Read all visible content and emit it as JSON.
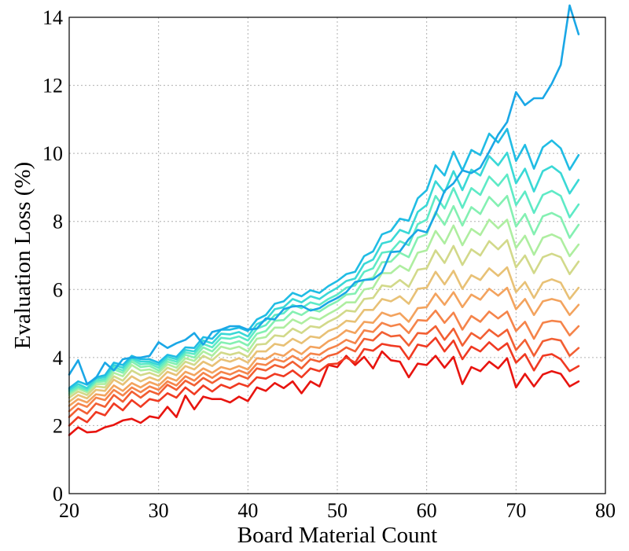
{
  "chart_data": {
    "type": "line",
    "title": "",
    "xlabel": "Board Material Count",
    "ylabel": "Evaluation Loss (%)",
    "xlim": [
      20,
      80
    ],
    "ylim": [
      0,
      14
    ],
    "xticks": [
      20,
      30,
      40,
      50,
      60,
      70,
      80
    ],
    "yticks": [
      0,
      2,
      4,
      6,
      8,
      10,
      12,
      14
    ],
    "grid": true,
    "legend": "none",
    "x": [
      20,
      21,
      22,
      23,
      24,
      25,
      26,
      27,
      28,
      29,
      30,
      31,
      32,
      33,
      34,
      35,
      36,
      37,
      38,
      39,
      40,
      41,
      42,
      43,
      44,
      45,
      46,
      47,
      48,
      49,
      50,
      51,
      52,
      53,
      54,
      55,
      56,
      57,
      58,
      59,
      60,
      61,
      62,
      63,
      64,
      65,
      66,
      67,
      68,
      69,
      70,
      71,
      72,
      73,
      74,
      75,
      76,
      77
    ],
    "series": [
      {
        "color": "#e8140f",
        "values": [
          1.72,
          1.95,
          1.8,
          1.82,
          1.95,
          2.02,
          2.15,
          2.2,
          2.08,
          2.27,
          2.22,
          2.55,
          2.25,
          2.88,
          2.48,
          2.85,
          2.78,
          2.78,
          2.68,
          2.85,
          2.72,
          3.12,
          3.02,
          3.25,
          3.1,
          3.3,
          2.95,
          3.3,
          3.15,
          3.78,
          3.72,
          4.05,
          3.78,
          4.02,
          3.68,
          4.18,
          3.92,
          3.88,
          3.42,
          3.82,
          3.78,
          4.05,
          3.7,
          4.02,
          3.22,
          3.72,
          3.6,
          3.88,
          3.68,
          3.98,
          3.12,
          3.52,
          3.15,
          3.5,
          3.6,
          3.52,
          3.15,
          3.3
        ]
      },
      {
        "color": "#f03a22",
        "values": [
          2.0,
          2.25,
          2.1,
          2.4,
          2.3,
          2.65,
          2.45,
          2.75,
          2.55,
          2.78,
          2.72,
          2.95,
          2.82,
          3.12,
          2.92,
          3.18,
          3.0,
          3.2,
          3.1,
          3.24,
          3.15,
          3.42,
          3.38,
          3.52,
          3.45,
          3.62,
          3.42,
          3.68,
          3.6,
          3.8,
          3.82,
          4.0,
          3.85,
          4.25,
          4.2,
          4.4,
          4.35,
          4.32,
          3.95,
          4.38,
          4.32,
          4.58,
          4.18,
          4.5,
          3.95,
          4.32,
          4.18,
          4.45,
          4.22,
          4.42,
          3.85,
          4.1,
          3.62,
          4.05,
          4.1,
          3.95,
          3.6,
          3.75
        ]
      },
      {
        "color": "#f25f33",
        "values": [
          2.25,
          2.5,
          2.35,
          2.65,
          2.55,
          2.9,
          2.7,
          3.0,
          2.82,
          3.02,
          2.92,
          3.2,
          3.05,
          3.32,
          3.18,
          3.4,
          3.25,
          3.42,
          3.35,
          3.48,
          3.38,
          3.68,
          3.62,
          3.78,
          3.7,
          3.88,
          3.68,
          3.95,
          3.88,
          4.05,
          4.12,
          4.3,
          4.18,
          4.55,
          4.5,
          4.75,
          4.62,
          4.65,
          4.35,
          4.72,
          4.7,
          4.92,
          4.52,
          4.85,
          4.35,
          4.72,
          4.55,
          4.82,
          4.62,
          4.82,
          4.22,
          4.52,
          4.05,
          4.48,
          4.55,
          4.5,
          4.05,
          4.28
        ]
      },
      {
        "color": "#f5844a",
        "values": [
          2.42,
          2.65,
          2.55,
          2.82,
          2.75,
          3.05,
          2.88,
          3.12,
          2.98,
          3.15,
          3.05,
          3.3,
          3.18,
          3.45,
          3.32,
          3.55,
          3.4,
          3.58,
          3.5,
          3.62,
          3.52,
          3.82,
          3.78,
          3.95,
          3.88,
          4.05,
          3.9,
          4.12,
          4.08,
          4.25,
          4.35,
          4.52,
          4.42,
          4.8,
          4.75,
          5.02,
          4.92,
          4.98,
          4.72,
          5.1,
          5.08,
          5.38,
          5.02,
          5.32,
          4.82,
          5.22,
          5.05,
          5.35,
          5.15,
          5.35,
          4.78,
          5.05,
          4.55,
          5.02,
          5.08,
          5.05,
          4.65,
          4.92
        ]
      },
      {
        "color": "#f3a35e",
        "values": [
          2.58,
          2.78,
          2.68,
          2.92,
          2.88,
          3.18,
          3.02,
          3.25,
          3.12,
          3.28,
          3.18,
          3.42,
          3.32,
          3.58,
          3.48,
          3.68,
          3.55,
          3.72,
          3.65,
          3.75,
          3.65,
          3.98,
          3.95,
          4.12,
          4.05,
          4.25,
          4.1,
          4.32,
          4.28,
          4.48,
          4.6,
          4.8,
          4.72,
          5.05,
          5.02,
          5.32,
          5.22,
          5.3,
          5.05,
          5.45,
          5.48,
          5.88,
          5.55,
          5.92,
          5.48,
          5.85,
          5.7,
          6.02,
          5.82,
          6.05,
          5.42,
          5.72,
          5.25,
          5.65,
          5.72,
          5.65,
          5.25,
          5.55
        ]
      },
      {
        "color": "#e8c176",
        "values": [
          2.7,
          2.9,
          2.8,
          3.05,
          3.02,
          3.35,
          3.2,
          3.45,
          3.3,
          3.42,
          3.32,
          3.58,
          3.48,
          3.75,
          3.65,
          3.88,
          3.75,
          3.95,
          3.88,
          3.98,
          3.85,
          4.18,
          4.18,
          4.4,
          4.35,
          4.55,
          4.42,
          4.62,
          4.58,
          4.78,
          4.88,
          5.08,
          5.05,
          5.4,
          5.4,
          5.72,
          5.65,
          5.8,
          5.58,
          6.02,
          6.05,
          6.52,
          6.15,
          6.55,
          6.02,
          6.42,
          6.28,
          6.62,
          6.4,
          6.65,
          5.92,
          6.22,
          5.75,
          6.2,
          6.3,
          6.2,
          5.72,
          6.05
        ]
      },
      {
        "color": "#d2d98a",
        "values": [
          2.82,
          3.0,
          2.9,
          3.15,
          3.12,
          3.45,
          3.32,
          3.62,
          3.48,
          3.55,
          3.45,
          3.7,
          3.6,
          3.88,
          3.78,
          4.05,
          3.92,
          4.15,
          4.08,
          4.15,
          4.02,
          4.38,
          4.4,
          4.65,
          4.62,
          4.85,
          4.72,
          4.92,
          4.88,
          5.05,
          5.18,
          5.38,
          5.35,
          5.72,
          5.75,
          6.12,
          6.08,
          6.28,
          6.08,
          6.58,
          6.62,
          7.15,
          6.78,
          7.28,
          6.72,
          7.18,
          7.0,
          7.42,
          7.18,
          7.45,
          6.65,
          7.0,
          6.48,
          6.95,
          7.05,
          6.95,
          6.45,
          6.82
        ]
      },
      {
        "color": "#aeeea0",
        "values": [
          2.9,
          3.08,
          2.98,
          3.22,
          3.22,
          3.55,
          3.45,
          3.78,
          3.62,
          3.65,
          3.55,
          3.8,
          3.7,
          3.98,
          3.9,
          4.18,
          4.05,
          4.32,
          4.25,
          4.32,
          4.18,
          4.55,
          4.6,
          4.88,
          4.88,
          5.12,
          5.0,
          5.18,
          5.12,
          5.28,
          5.42,
          5.62,
          5.62,
          6.0,
          6.05,
          6.48,
          6.48,
          6.7,
          6.55,
          7.08,
          7.15,
          7.72,
          7.35,
          7.88,
          7.3,
          7.78,
          7.6,
          8.05,
          7.8,
          8.05,
          7.22,
          7.58,
          7.02,
          7.52,
          7.62,
          7.5,
          6.98,
          7.32
        ]
      },
      {
        "color": "#84f0b2",
        "values": [
          2.95,
          3.12,
          3.02,
          3.28,
          3.3,
          3.65,
          3.55,
          3.88,
          3.72,
          3.75,
          3.62,
          3.88,
          3.8,
          4.08,
          4.0,
          4.3,
          4.18,
          4.45,
          4.4,
          4.48,
          4.35,
          4.7,
          4.78,
          5.08,
          5.1,
          5.35,
          5.25,
          5.42,
          5.35,
          5.52,
          5.65,
          5.85,
          5.88,
          6.28,
          6.35,
          6.8,
          6.82,
          7.08,
          6.95,
          7.52,
          7.62,
          8.28,
          7.9,
          8.45,
          7.88,
          8.42,
          8.22,
          8.72,
          8.45,
          8.75,
          7.85,
          8.22,
          7.62,
          8.15,
          8.25,
          8.12,
          7.52,
          7.9
        ]
      },
      {
        "color": "#5eeac6",
        "values": [
          3.0,
          3.15,
          3.05,
          3.32,
          3.36,
          3.72,
          3.62,
          3.95,
          3.8,
          3.82,
          3.7,
          3.95,
          3.88,
          4.15,
          4.1,
          4.4,
          4.3,
          4.58,
          4.55,
          4.62,
          4.5,
          4.85,
          4.95,
          5.25,
          5.3,
          5.55,
          5.45,
          5.62,
          5.55,
          5.72,
          5.85,
          6.05,
          6.12,
          6.52,
          6.62,
          7.08,
          7.12,
          7.42,
          7.3,
          7.92,
          8.05,
          8.75,
          8.38,
          8.98,
          8.4,
          8.98,
          8.78,
          9.32,
          9.05,
          9.38,
          8.48,
          8.88,
          8.25,
          8.78,
          8.9,
          8.75,
          8.12,
          8.5
        ]
      },
      {
        "color": "#3ad8d6",
        "values": [
          3.05,
          3.22,
          3.1,
          3.38,
          3.42,
          3.78,
          3.7,
          4.0,
          3.88,
          3.88,
          3.78,
          4.02,
          3.95,
          4.22,
          4.18,
          4.5,
          4.42,
          4.7,
          4.68,
          4.75,
          4.62,
          4.98,
          5.1,
          5.42,
          5.48,
          5.72,
          5.62,
          5.8,
          5.72,
          5.9,
          6.05,
          6.25,
          6.32,
          6.75,
          6.88,
          7.35,
          7.42,
          7.75,
          7.65,
          8.28,
          8.48,
          9.18,
          8.85,
          9.48,
          8.92,
          9.52,
          9.35,
          9.92,
          9.65,
          10.02,
          9.12,
          9.55,
          8.88,
          9.48,
          9.62,
          9.42,
          8.82,
          9.22
        ]
      },
      {
        "color": "#20bce4",
        "values": [
          3.1,
          3.3,
          3.2,
          3.42,
          3.48,
          3.85,
          3.78,
          4.05,
          3.95,
          3.95,
          3.85,
          4.08,
          4.02,
          4.3,
          4.28,
          4.6,
          4.55,
          4.82,
          4.82,
          4.88,
          4.78,
          5.12,
          5.25,
          5.58,
          5.65,
          5.9,
          5.8,
          5.98,
          5.9,
          6.1,
          6.25,
          6.45,
          6.52,
          6.98,
          7.12,
          7.62,
          7.72,
          8.08,
          8.02,
          8.68,
          8.92,
          9.65,
          9.35,
          10.05,
          9.5,
          10.1,
          9.95,
          10.58,
          10.32,
          10.72,
          9.78,
          10.25,
          9.55,
          10.18,
          10.38,
          10.15,
          9.52,
          9.95
        ]
      },
      {
        "color": "#1aa7e6",
        "values": [
          3.5,
          3.92,
          3.22,
          3.4,
          3.85,
          3.62,
          3.95,
          4.0,
          4.0,
          4.05,
          4.45,
          4.28,
          4.42,
          4.52,
          4.72,
          4.38,
          4.75,
          4.82,
          4.92,
          4.92,
          4.82,
          4.85,
          5.15,
          5.12,
          5.42,
          5.5,
          5.52,
          5.38,
          5.45,
          5.62,
          5.75,
          5.92,
          6.22,
          6.28,
          6.3,
          6.5,
          7.1,
          7.12,
          7.48,
          7.75,
          7.68,
          8.22,
          8.9,
          9.12,
          9.5,
          9.42,
          9.58,
          10.05,
          10.55,
          10.92,
          11.8,
          11.42,
          11.62,
          11.62,
          12.05,
          12.6,
          14.35,
          13.5
        ]
      }
    ]
  }
}
